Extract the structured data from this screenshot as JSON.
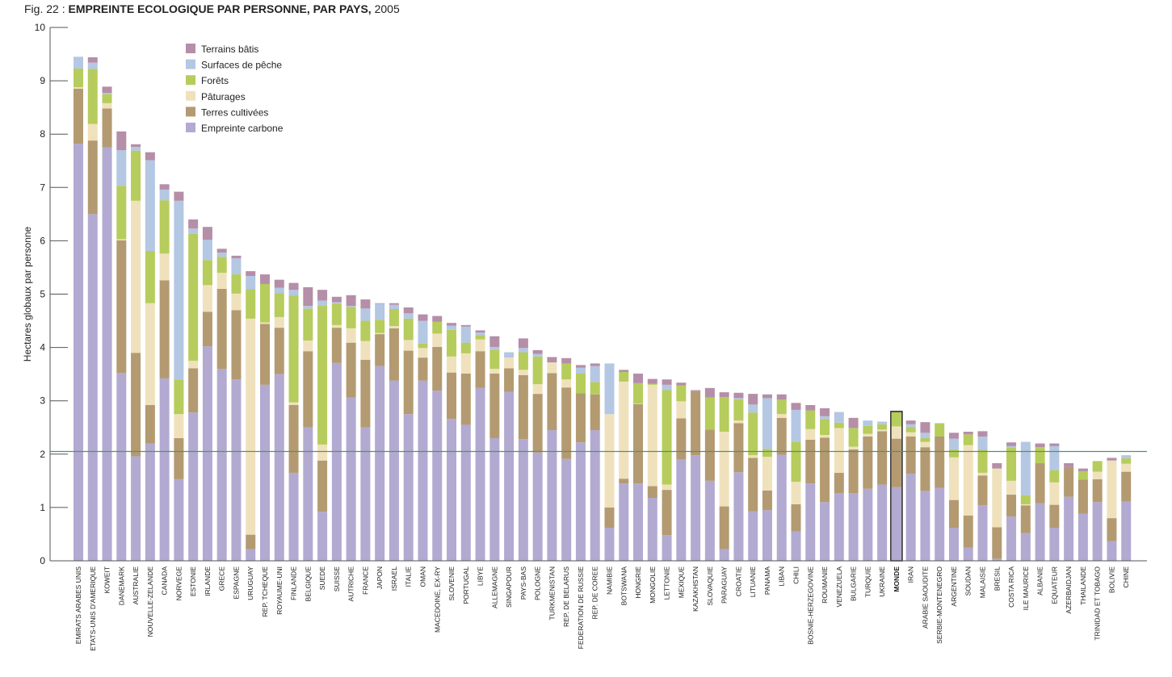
{
  "figure": {
    "number": "Fig. 22 :",
    "title": "EMPREINTE ECOLOGIQUE PAR PERSONNE, PAR PAYS,",
    "year": "2005"
  },
  "colors": {
    "terrains_batis": "#b58ea8",
    "surfaces_peche": "#b4c7e3",
    "forets": "#b6cc5c",
    "paturages": "#f0e1bd",
    "terres_cultivees": "#b39a71",
    "empreinte_carbone": "#b2aad1",
    "reference_line": "#5c8f64",
    "highlight_outline": "#222222"
  },
  "chart_data": {
    "type": "bar",
    "stacked": true,
    "title": "EMPREINTE ECOLOGIQUE PAR PERSONNE, PAR PAYS, 2005",
    "ylabel": "Hectares globaux par personne",
    "xlabel": "",
    "ylim": [
      0,
      10
    ],
    "yticks": [
      0,
      1,
      2,
      3,
      4,
      5,
      6,
      7,
      8,
      9,
      10
    ],
    "grid": false,
    "legend_position": "top-left",
    "reference_line": {
      "y": 2.05,
      "color": "#5c8f64"
    },
    "highlight_category": "MONDE",
    "legend_order": [
      "Terrains bâtis",
      "Surfaces de pêche",
      "Forêts",
      "Pâturages",
      "Terres cultivées",
      "Empreinte carbone"
    ],
    "categories": [
      "EMIRATS ARABES UNIS",
      "ETATS-UNIS D'AMERIQUE",
      "KOWEIT",
      "DANEMARK",
      "AUSTRALIE",
      "NOUVELLE-ZELANDE",
      "CANADA",
      "NORVEGE",
      "ESTONIE",
      "IRLANDE",
      "GRECE",
      "ESPAGNE",
      "URUGUAY",
      "REP. TCHEQUE",
      "ROYAUME-UNI",
      "FINLANDE",
      "BELGIQUE",
      "SUEDE",
      "SUISSE",
      "AUTRICHE",
      "FRANCE",
      "JAPON",
      "ISRAEL",
      "ITALIE",
      "OMAN",
      "MACEDOINE, EX-RY",
      "SLOVENIE",
      "PORTUGAL",
      "LIBYE",
      "ALLEMAGNE",
      "SINGAPOUR",
      "PAYS-BAS",
      "POLOGNE",
      "TURKMENISTAN",
      "REP. DE BELARUS",
      "FEDERATION DE RUSSIE",
      "REP. DE COREE",
      "NAMIBIE",
      "BOTSWANA",
      "HONGRIE",
      "MONGOLIE",
      "LETTONIE",
      "MEXIQUE",
      "KAZAKHSTAN",
      "SLOVAQUIE",
      "PARAGUAY",
      "CROATIE",
      "LITUANIE",
      "PANAMA",
      "LIBAN",
      "CHILI",
      "BOSNIE-HERZEGOVINE",
      "ROUMANIE",
      "VENEZUELA",
      "BULGARIE",
      "TURQUIE",
      "UKRAINE",
      "MONDE",
      "IRAN",
      "ARABIE SAOUDITE",
      "SERBIE-MONTENEGRO",
      "ARGENTINE",
      "SOUDAN",
      "MALAISIE",
      "BRESIL",
      "COSTA RICA",
      "ILE MAURICE",
      "ALBANIE",
      "EQUATEUR",
      "AZERBAIDJAN",
      "THAILANDE",
      "TRINIDAD ET TOBAGO",
      "BOLIVIE",
      "CHINE"
    ],
    "series": [
      {
        "name": "Empreinte carbone",
        "color_key": "empreinte_carbone",
        "values": [
          7.82,
          6.5,
          7.75,
          3.52,
          1.96,
          2.2,
          3.42,
          1.53,
          2.78,
          4.02,
          3.6,
          3.4,
          0.22,
          3.3,
          3.5,
          1.65,
          2.5,
          0.92,
          3.71,
          3.06,
          2.5,
          3.65,
          3.38,
          2.75,
          3.38,
          3.19,
          2.66,
          2.55,
          3.24,
          2.3,
          3.17,
          2.28,
          2.03,
          2.45,
          1.91,
          2.22,
          2.45,
          0.62,
          1.45,
          1.45,
          1.18,
          0.48,
          1.9,
          1.98,
          1.5,
          0.22,
          1.66,
          0.93,
          0.95,
          1.99,
          0.55,
          1.45,
          1.1,
          1.27,
          1.27,
          1.35,
          1.43,
          1.38,
          1.63,
          1.31,
          1.37,
          0.62,
          0.25,
          1.04,
          0.04,
          0.83,
          0.52,
          1.08,
          0.62,
          1.2,
          0.88,
          1.1,
          0.37,
          1.11
        ]
      },
      {
        "name": "Terres cultivées",
        "color_key": "terres_cultivees",
        "values": [
          1.03,
          1.38,
          0.73,
          2.49,
          1.94,
          0.72,
          1.84,
          0.77,
          0.83,
          0.65,
          1.5,
          1.3,
          0.27,
          1.14,
          0.87,
          1.27,
          1.43,
          0.96,
          0.66,
          1.03,
          1.27,
          0.6,
          0.98,
          1.19,
          0.43,
          0.82,
          0.87,
          0.96,
          0.69,
          1.21,
          0.44,
          1.2,
          1.1,
          1.07,
          1.34,
          0.92,
          0.67,
          0.38,
          0.09,
          1.49,
          0.22,
          0.85,
          0.77,
          1.2,
          0.96,
          0.8,
          0.92,
          1.0,
          0.37,
          0.69,
          0.51,
          0.82,
          1.21,
          0.38,
          0.82,
          0.98,
          1.0,
          0.91,
          0.7,
          0.82,
          0.96,
          0.52,
          0.6,
          0.56,
          0.59,
          0.41,
          0.52,
          0.75,
          0.43,
          0.56,
          0.64,
          0.43,
          0.43,
          0.56
        ]
      },
      {
        "name": "Pâturages",
        "color_key": "paturages",
        "values": [
          0.03,
          0.31,
          0.1,
          0.02,
          2.85,
          1.91,
          0.5,
          0.45,
          0.14,
          0.5,
          0.3,
          0.31,
          4.05,
          0.03,
          0.2,
          0.05,
          0.2,
          0.3,
          0.05,
          0.27,
          0.35,
          0.02,
          0.04,
          0.2,
          0.18,
          0.25,
          0.3,
          0.38,
          0.22,
          0.09,
          0.2,
          0.1,
          0.18,
          0.2,
          0.15,
          0.0,
          0.0,
          1.75,
          1.82,
          0.01,
          1.9,
          0.1,
          0.32,
          0.0,
          0.0,
          1.4,
          0.05,
          0.05,
          0.63,
          0.07,
          0.42,
          0.2,
          0.05,
          0.84,
          0.05,
          0.05,
          0.03,
          0.23,
          0.08,
          0.1,
          0.0,
          0.8,
          1.32,
          0.05,
          1.1,
          0.26,
          0.02,
          0.0,
          0.42,
          0.0,
          0.0,
          0.14,
          1.08,
          0.15
        ]
      },
      {
        "name": "Forêts",
        "color_key": "forets",
        "values": [
          0.35,
          1.03,
          0.17,
          1.0,
          0.94,
          0.98,
          1.0,
          0.65,
          2.38,
          0.47,
          0.3,
          0.36,
          0.55,
          0.72,
          0.45,
          2.0,
          0.6,
          2.6,
          0.4,
          0.4,
          0.38,
          0.25,
          0.32,
          0.4,
          0.08,
          0.22,
          0.5,
          0.2,
          0.08,
          0.36,
          0.0,
          0.33,
          0.52,
          0.0,
          0.3,
          0.37,
          0.23,
          0.0,
          0.18,
          0.38,
          0.02,
          1.77,
          0.3,
          0.0,
          0.6,
          0.65,
          0.4,
          0.8,
          0.15,
          0.27,
          0.75,
          0.35,
          0.3,
          0.1,
          0.35,
          0.15,
          0.1,
          0.28,
          0.1,
          0.07,
          0.25,
          0.15,
          0.2,
          0.43,
          0.0,
          0.63,
          0.17,
          0.3,
          0.23,
          0.0,
          0.16,
          0.2,
          0.0,
          0.1
        ]
      },
      {
        "name": "Surfaces de pêche",
        "color_key": "surfaces_peche",
        "values": [
          0.22,
          0.12,
          0.02,
          0.67,
          0.07,
          1.7,
          0.2,
          3.35,
          0.1,
          0.38,
          0.08,
          0.3,
          0.25,
          0.0,
          0.1,
          0.11,
          0.05,
          0.1,
          0.03,
          0.02,
          0.23,
          0.3,
          0.08,
          0.1,
          0.43,
          0.0,
          0.08,
          0.3,
          0.05,
          0.05,
          0.1,
          0.08,
          0.05,
          0.0,
          0.0,
          0.11,
          0.3,
          0.95,
          0.0,
          0.0,
          0.0,
          0.1,
          0.0,
          0.0,
          0.0,
          0.0,
          0.02,
          0.15,
          0.95,
          0.0,
          0.6,
          0.0,
          0.05,
          0.2,
          0.0,
          0.1,
          0.05,
          0.0,
          0.05,
          0.1,
          0.0,
          0.2,
          0.0,
          0.25,
          0.0,
          0.02,
          1.0,
          0.0,
          0.45,
          0.0,
          0.0,
          0.0,
          0.0,
          0.06
        ]
      },
      {
        "name": "Terrains bâtis",
        "color_key": "terrains_batis",
        "values": [
          0.0,
          0.1,
          0.12,
          0.35,
          0.05,
          0.15,
          0.1,
          0.17,
          0.17,
          0.24,
          0.07,
          0.05,
          0.09,
          0.18,
          0.15,
          0.13,
          0.35,
          0.2,
          0.1,
          0.2,
          0.17,
          0.01,
          0.03,
          0.11,
          0.12,
          0.11,
          0.05,
          0.03,
          0.04,
          0.2,
          0.0,
          0.18,
          0.07,
          0.1,
          0.1,
          0.05,
          0.05,
          0.0,
          0.04,
          0.18,
          0.09,
          0.1,
          0.05,
          0.02,
          0.18,
          0.09,
          0.1,
          0.2,
          0.07,
          0.1,
          0.13,
          0.1,
          0.15,
          0.0,
          0.19,
          0.0,
          0.0,
          0.0,
          0.07,
          0.2,
          0.0,
          0.11,
          0.05,
          0.1,
          0.1,
          0.07,
          0.0,
          0.07,
          0.05,
          0.07,
          0.05,
          0.0,
          0.05,
          0.0
        ]
      }
    ]
  }
}
